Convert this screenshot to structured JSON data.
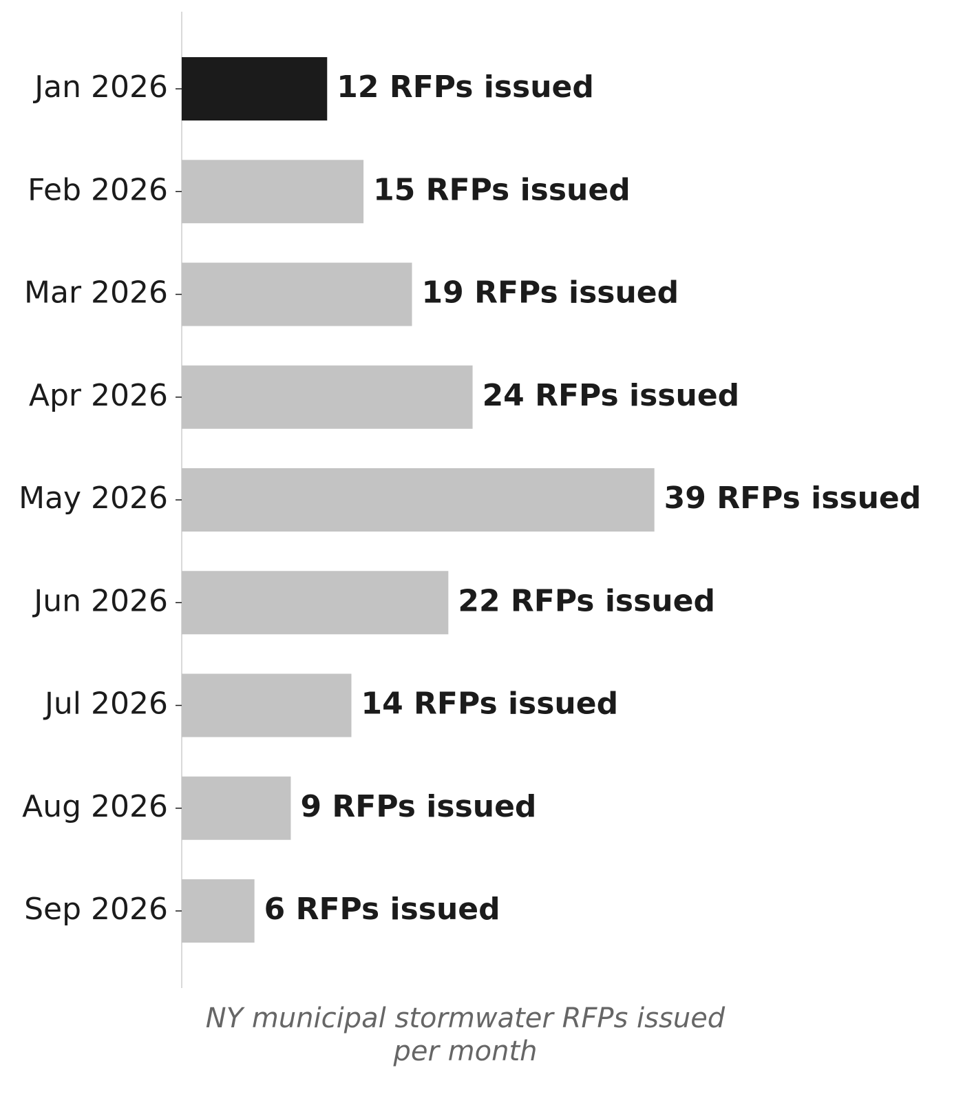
{
  "chart_data": {
    "type": "barh",
    "categories": [
      "Jan 2026",
      "Feb 2026",
      "Mar 2026",
      "Apr 2026",
      "May 2026",
      "Jun 2026",
      "Jul 2026",
      "Aug 2026",
      "Sep 2026"
    ],
    "values": [
      12,
      15,
      19,
      24,
      39,
      22,
      14,
      9,
      6
    ],
    "value_labels": [
      "12 RFPs issued",
      "15 RFPs issued",
      "19 RFPs issued",
      "24 RFPs issued",
      "39 RFPs issued",
      "22 RFPs issued",
      "14 RFPs issued",
      "9 RFPs issued",
      "6 RFPs issued"
    ],
    "colors": [
      "#1b1b1b",
      "#c3c3c3",
      "#c3c3c3",
      "#c3c3c3",
      "#c3c3c3",
      "#c3c3c3",
      "#c3c3c3",
      "#c3c3c3",
      "#c3c3c3"
    ],
    "xlabel": "NY municipal stormwater RFPs issued per month",
    "xlim": [
      0,
      46.8
    ]
  }
}
